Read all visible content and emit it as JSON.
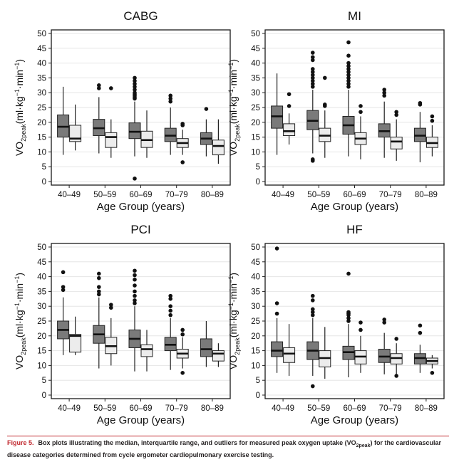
{
  "colors": {
    "dark_box": "#7a7a7a",
    "light_box": "#ececec",
    "panel_border": "#1a1a1a",
    "grid": "#e6e6e6",
    "caption_label": "#c0272d"
  },
  "y_axis_label": {
    "base": "VO",
    "sub": "2peak",
    "unit_open": "(ml·kg",
    "exp1": "−1",
    "unit_mid": "·min",
    "exp2": "−1",
    "unit_close": ")"
  },
  "caption": {
    "label": "Figure 5.",
    "text_part1": "Box plots illustrating the median, interquartile range, and outliers for measured peak oxygen uptake (VO",
    "text_sub": "2peak",
    "text_part2": ") for the cardiovascular disease categories determined from cycle ergometer cardiopulmonary exercise testing."
  },
  "chart_data": [
    {
      "type": "box",
      "title": "CABG",
      "xlabel": "Age Group (years)",
      "ylabel": "VO2peak(ml·kg−1·min−1)",
      "ylim": [
        0,
        50
      ],
      "yticks": [
        0,
        5,
        10,
        15,
        20,
        25,
        30,
        35,
        40,
        45,
        50
      ],
      "categories": [
        "40–49",
        "50–59",
        "60–69",
        "70–79",
        "80–89"
      ],
      "series": [
        {
          "name": "dark",
          "boxes": [
            {
              "low": 9,
              "q1": 15,
              "median": 18.5,
              "q3": 22.5,
              "high": 32,
              "outliers": []
            },
            {
              "low": 9.5,
              "q1": 15.5,
              "median": 18,
              "q3": 21,
              "high": 28.5,
              "outliers": [
                31.5,
                32.5
              ]
            },
            {
              "low": 8.5,
              "q1": 14.5,
              "median": 16.8,
              "q3": 19.8,
              "high": 27,
              "outliers": [
                1,
                28,
                28.5,
                29,
                29.5,
                30,
                31,
                32,
                33,
                34,
                35
              ]
            },
            {
              "low": 9,
              "q1": 13.5,
              "median": 15.5,
              "q3": 18,
              "high": 25,
              "outliers": [
                27,
                28,
                29
              ]
            },
            {
              "low": 8.5,
              "q1": 12.5,
              "median": 14.5,
              "q3": 16.5,
              "high": 21,
              "outliers": [
                24.5
              ]
            }
          ]
        },
        {
          "name": "light",
          "boxes": [
            {
              "low": 10.5,
              "q1": 13.5,
              "median": 14.5,
              "q3": 19,
              "high": 26,
              "outliers": []
            },
            {
              "low": 8,
              "q1": 11.5,
              "median": 15,
              "q3": 16.5,
              "high": 21,
              "outliers": [
                31.5
              ]
            },
            {
              "low": 8,
              "q1": 11.5,
              "median": 14,
              "q3": 17,
              "high": 24,
              "outliers": []
            },
            {
              "low": 9,
              "q1": 11.5,
              "median": 13,
              "q3": 14.5,
              "high": 17.5,
              "outliers": [
                6.5,
                19,
                19.5
              ]
            },
            {
              "low": 6,
              "q1": 9,
              "median": 12,
              "q3": 14,
              "high": 21,
              "outliers": []
            }
          ]
        }
      ]
    },
    {
      "type": "box",
      "title": "MI",
      "xlabel": "Age Group (years)",
      "ylabel": "VO2peak(ml·kg−1·min−1)",
      "ylim": [
        0,
        50
      ],
      "yticks": [
        0,
        5,
        10,
        15,
        20,
        25,
        30,
        35,
        40,
        45,
        50
      ],
      "categories": [
        "40–49",
        "50–59",
        "60–69",
        "70–79",
        "80–89"
      ],
      "series": [
        {
          "name": "dark",
          "boxes": [
            {
              "low": 9,
              "q1": 18,
              "median": 22,
              "q3": 25.5,
              "high": 36.5,
              "outliers": []
            },
            {
              "low": 9.5,
              "q1": 17.5,
              "median": 20.5,
              "q3": 24,
              "high": 31,
              "outliers": [
                7,
                7.5,
                32,
                33,
                34,
                35,
                36,
                37,
                38,
                41,
                42,
                43.5
              ]
            },
            {
              "low": 8.5,
              "q1": 16,
              "median": 19,
              "q3": 22,
              "high": 31,
              "outliers": [
                32,
                33,
                34,
                35,
                36,
                37,
                38,
                39,
                40,
                42.5,
                47
              ]
            },
            {
              "low": 8,
              "q1": 15,
              "median": 17,
              "q3": 19.5,
              "high": 27,
              "outliers": [
                29,
                30,
                31
              ]
            },
            {
              "low": 6.5,
              "q1": 13.5,
              "median": 15.5,
              "q3": 18,
              "high": 23.5,
              "outliers": [
                26,
                26.5
              ]
            }
          ]
        },
        {
          "name": "light",
          "boxes": [
            {
              "low": 12.5,
              "q1": 15.5,
              "median": 17,
              "q3": 19.5,
              "high": 23,
              "outliers": [
                25.5,
                29.5
              ]
            },
            {
              "low": 8,
              "q1": 13.5,
              "median": 15.5,
              "q3": 18,
              "high": 24,
              "outliers": [
                25.5,
                26,
                35
              ]
            },
            {
              "low": 7.5,
              "q1": 12.5,
              "median": 14.5,
              "q3": 16.5,
              "high": 22,
              "outliers": [
                23.5,
                25.5
              ]
            },
            {
              "low": 7,
              "q1": 11,
              "median": 13.5,
              "q3": 15,
              "high": 21,
              "outliers": [
                22.5,
                23.5
              ]
            },
            {
              "low": 8.5,
              "q1": 11.5,
              "median": 13,
              "q3": 15,
              "high": 19,
              "outliers": [
                20.5,
                22
              ]
            }
          ]
        }
      ]
    },
    {
      "type": "box",
      "title": "PCI",
      "xlabel": "Age Group (years)",
      "ylabel": "VO2peak(ml·kg−1·min−1)",
      "ylim": [
        0,
        50
      ],
      "yticks": [
        0,
        5,
        10,
        15,
        20,
        25,
        30,
        35,
        40,
        45,
        50
      ],
      "categories": [
        "40–49",
        "50–59",
        "60–69",
        "70–79",
        "80–89"
      ],
      "series": [
        {
          "name": "dark",
          "boxes": [
            {
              "low": 13.5,
              "q1": 19,
              "median": 22,
              "q3": 25,
              "high": 33,
              "outliers": [
                35.5,
                36.5,
                41.5
              ]
            },
            {
              "low": 9,
              "q1": 17.5,
              "median": 20.5,
              "q3": 23.5,
              "high": 33,
              "outliers": [
                34,
                35,
                36.5,
                39.5,
                41
              ]
            },
            {
              "low": 8,
              "q1": 16,
              "median": 19,
              "q3": 22,
              "high": 30,
              "outliers": [
                31,
                32,
                33.5,
                35,
                37,
                39,
                40.5,
                42
              ]
            },
            {
              "low": 8.5,
              "q1": 15,
              "median": 17,
              "q3": 19.5,
              "high": 26,
              "outliers": [
                27,
                28.5,
                30,
                32.5,
                33.5
              ]
            },
            {
              "low": 9.5,
              "q1": 13,
              "median": 15.5,
              "q3": 19,
              "high": 25,
              "outliers": []
            }
          ]
        },
        {
          "name": "light",
          "boxes": [
            {
              "low": 13.5,
              "q1": 14.5,
              "median": 20,
              "q3": 20.5,
              "high": 26.5,
              "outliers": []
            },
            {
              "low": 10,
              "q1": 14,
              "median": 16.5,
              "q3": 19.5,
              "high": 26,
              "outliers": [
                29.5,
                30.5
              ]
            },
            {
              "low": 8,
              "q1": 13,
              "median": 15.5,
              "q3": 17,
              "high": 22,
              "outliers": []
            },
            {
              "low": 9,
              "q1": 12.5,
              "median": 14,
              "q3": 15.5,
              "high": 19.5,
              "outliers": [
                7.5,
                20.5,
                22
              ]
            },
            {
              "low": 9.5,
              "q1": 11.5,
              "median": 14,
              "q3": 15,
              "high": 17.5,
              "outliers": []
            }
          ]
        }
      ]
    },
    {
      "type": "box",
      "title": "HF",
      "xlabel": "Age Group (years)",
      "ylabel": "VO2peak(ml·kg−1·min−1)",
      "ylim": [
        0,
        50
      ],
      "yticks": [
        0,
        5,
        10,
        15,
        20,
        25,
        30,
        35,
        40,
        45,
        50
      ],
      "categories": [
        "40–49",
        "50–59",
        "60–69",
        "70–79",
        "80–89"
      ],
      "series": [
        {
          "name": "dark",
          "boxes": [
            {
              "low": 7.5,
              "q1": 13,
              "median": 15,
              "q3": 18,
              "high": 26,
              "outliers": [
                27.5,
                31,
                49.5
              ]
            },
            {
              "low": 6.5,
              "q1": 12,
              "median": 15,
              "q3": 18,
              "high": 26,
              "outliers": [
                3,
                27,
                28,
                29,
                32,
                33.5
              ]
            },
            {
              "low": 6,
              "q1": 12,
              "median": 14.5,
              "q3": 16.5,
              "high": 24,
              "outliers": [
                25,
                26,
                27,
                27.5,
                28,
                41
              ]
            },
            {
              "low": 7,
              "q1": 11,
              "median": 13,
              "q3": 15.5,
              "high": 21,
              "outliers": [
                24.5,
                25.5
              ]
            },
            {
              "low": 7.5,
              "q1": 10.5,
              "median": 12.5,
              "q3": 14,
              "high": 17,
              "outliers": [
                21,
                23.5
              ]
            }
          ]
        },
        {
          "name": "light",
          "boxes": [
            {
              "low": 6.5,
              "q1": 11,
              "median": 14,
              "q3": 16,
              "high": 24,
              "outliers": []
            },
            {
              "low": 5.5,
              "q1": 9.5,
              "median": 12.5,
              "q3": 15,
              "high": 23,
              "outliers": []
            },
            {
              "low": 7.5,
              "q1": 10.5,
              "median": 13,
              "q3": 15,
              "high": 20,
              "outliers": [
                22,
                24.5
              ]
            },
            {
              "low": 7,
              "q1": 10.5,
              "median": 12.5,
              "q3": 14,
              "high": 17.5,
              "outliers": [
                6.5,
                19
              ]
            },
            {
              "low": 9,
              "q1": 10.5,
              "median": 11.5,
              "q3": 12.5,
              "high": 13.5,
              "outliers": [
                7.5
              ]
            }
          ]
        }
      ]
    }
  ]
}
